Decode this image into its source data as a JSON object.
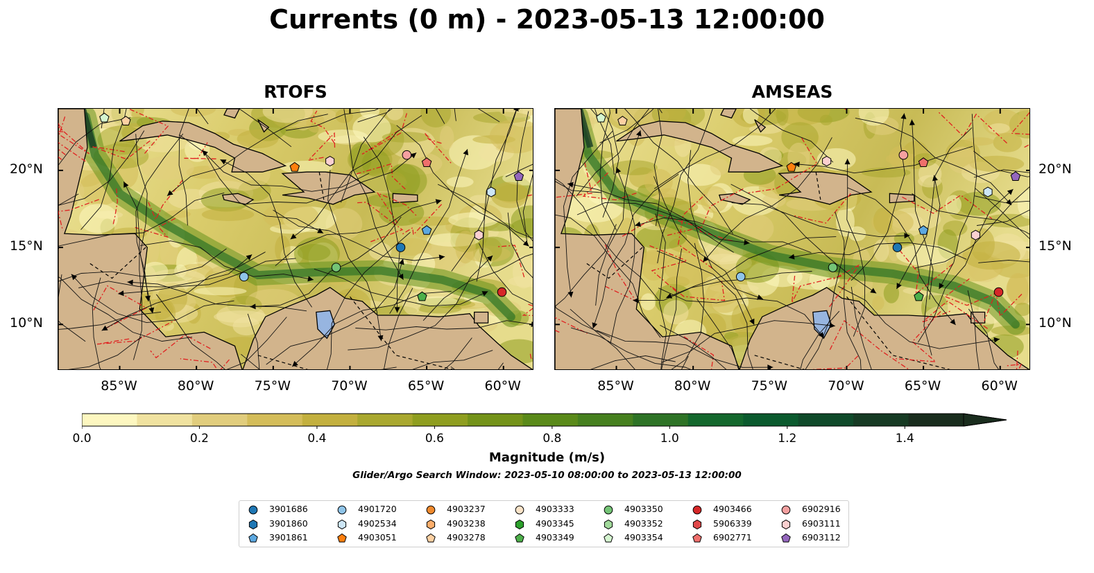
{
  "title": "Currents (0 m) - 2023-05-13 12:00:00",
  "panels": [
    {
      "title": "RTOFS",
      "side": "left"
    },
    {
      "title": "AMSEAS",
      "side": "right"
    }
  ],
  "axes": {
    "lat_ticks": [
      "20°N",
      "15°N",
      "10°N"
    ],
    "lon_ticks": [
      "85°W",
      "80°W",
      "75°W",
      "70°W",
      "65°W",
      "60°W"
    ],
    "lat_range": [
      7,
      24
    ],
    "lon_range": [
      -89,
      -58
    ]
  },
  "colorbar": {
    "label": "Magnitude (m/s)",
    "ticks": [
      "0.0",
      "0.2",
      "0.4",
      "0.6",
      "0.8",
      "1.0",
      "1.2",
      "1.4"
    ],
    "range": [
      0,
      1.5
    ],
    "extend": "max",
    "colors": [
      "#fdf7c0",
      "#f0e2a0",
      "#e1cd7d",
      "#d4bd5a",
      "#c3b03f",
      "#a9a82f",
      "#8f9e20",
      "#74931a",
      "#5a8a1a",
      "#46801f",
      "#2e7326",
      "#14682d",
      "#0b5a2e",
      "#104a2a",
      "#173b24",
      "#1a2d1e"
    ]
  },
  "search_window": "Glider/Argo Search Window: 2023-05-10 08:00:00 to 2023-05-13 12:00:00",
  "legend": [
    {
      "id": "3901686",
      "marker": "circle",
      "color": "#1f77b4"
    },
    {
      "id": "3901860",
      "marker": "hexagon",
      "color": "#1f77b4"
    },
    {
      "id": "3901861",
      "marker": "pentagon",
      "color": "#5ca8e0"
    },
    {
      "id": "4901720",
      "marker": "circle",
      "color": "#8fc4e8"
    },
    {
      "id": "4902534",
      "marker": "hexagon",
      "color": "#cde6f6"
    },
    {
      "id": "4903051",
      "marker": "pentagon",
      "color": "#ff7f0e"
    },
    {
      "id": "4903237",
      "marker": "circle",
      "color": "#f08a2e"
    },
    {
      "id": "4903238",
      "marker": "hexagon",
      "color": "#fdae6b"
    },
    {
      "id": "4903278",
      "marker": "pentagon",
      "color": "#fdd0a2"
    },
    {
      "id": "4903333",
      "marker": "circle",
      "color": "#fbe3c8"
    },
    {
      "id": "4903345",
      "marker": "hexagon",
      "color": "#2ca02c"
    },
    {
      "id": "4903349",
      "marker": "pentagon",
      "color": "#4daf4a"
    },
    {
      "id": "4903350",
      "marker": "circle",
      "color": "#74c476"
    },
    {
      "id": "4903352",
      "marker": "hexagon",
      "color": "#a1d99b"
    },
    {
      "id": "4903354",
      "marker": "pentagon",
      "color": "#d5f5d0"
    },
    {
      "id": "4903466",
      "marker": "circle",
      "color": "#d62728"
    },
    {
      "id": "5906339",
      "marker": "hexagon",
      "color": "#e0484a"
    },
    {
      "id": "6902771",
      "marker": "pentagon",
      "color": "#ef6f6c"
    },
    {
      "id": "6902916",
      "marker": "circle",
      "color": "#f4a0a0"
    },
    {
      "id": "6903111",
      "marker": "hexagon",
      "color": "#fbd0d0"
    },
    {
      "id": "6903112",
      "marker": "pentagon",
      "color": "#9467bd"
    }
  ],
  "chart_data": {
    "type": "heatmap",
    "variable": "surface current magnitude",
    "units": "m/s",
    "panels": [
      "RTOFS",
      "AMSEAS"
    ],
    "lon_range": [
      -89,
      -58
    ],
    "lat_range": [
      7,
      24
    ],
    "floats": [
      {
        "id": "4903354",
        "lon": -86.0,
        "lat": 23.4
      },
      {
        "id": "4903278",
        "lon": -84.6,
        "lat": 23.2
      },
      {
        "id": "4903051",
        "lon": -73.6,
        "lat": 20.2
      },
      {
        "id": "6903111",
        "lon": -71.3,
        "lat": 20.6
      },
      {
        "id": "6902916",
        "lon": -66.3,
        "lat": 21.0
      },
      {
        "id": "6902771",
        "lon": -65.0,
        "lat": 20.5
      },
      {
        "id": "6903112",
        "lon": -59.0,
        "lat": 19.6
      },
      {
        "id": "4902534",
        "lon": -60.8,
        "lat": 18.6
      },
      {
        "id": "3901861",
        "lon": -65.0,
        "lat": 16.1
      },
      {
        "id": "3901686",
        "lon": -66.7,
        "lat": 15.0
      },
      {
        "id": "6903111",
        "lon": -61.6,
        "lat": 15.8
      },
      {
        "id": "4903350",
        "lon": -70.9,
        "lat": 13.7
      },
      {
        "id": "4901720",
        "lon": -76.9,
        "lat": 13.1
      },
      {
        "id": "4903349",
        "lon": -65.3,
        "lat": 11.8
      },
      {
        "id": "4903466",
        "lon": -60.1,
        "lat": 12.1
      }
    ]
  }
}
